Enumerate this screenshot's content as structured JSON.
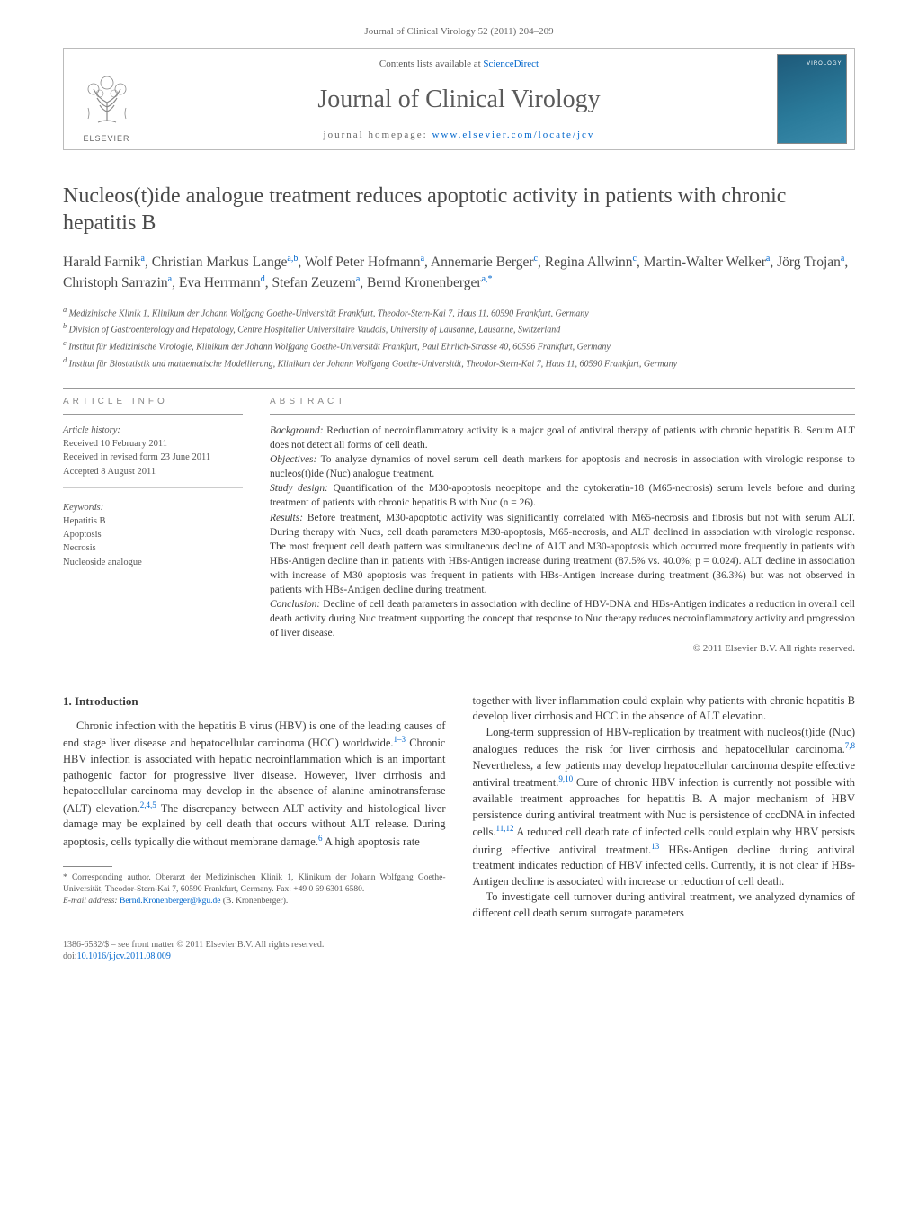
{
  "header": {
    "citation": "Journal of Clinical Virology 52 (2011) 204–209",
    "contents_line_prefix": "Contents lists available at ",
    "contents_link": "ScienceDirect",
    "journal_name": "Journal of Clinical Virology",
    "homepage_prefix": "journal homepage: ",
    "homepage_url": "www.elsevier.com/locate/jcv",
    "publisher_word": "ELSEVIER"
  },
  "article": {
    "title": "Nucleos(t)ide analogue treatment reduces apoptotic activity in patients with chronic hepatitis B",
    "authors_html": "Harald Farnik<sup>a</sup>, Christian Markus Lange<sup>a,b</sup>, Wolf Peter Hofmann<sup>a</sup>, Annemarie Berger<sup>c</sup>, Regina Allwinn<sup>c</sup>, Martin-Walter Welker<sup>a</sup>, Jörg Trojan<sup>a</sup>, Christoph Sarrazin<sup>a</sup>, Eva Herrmann<sup>d</sup>, Stefan Zeuzem<sup>a</sup>, Bernd Kronenberger<sup>a,*</sup>",
    "affiliations": [
      "a Medizinische Klinik 1, Klinikum der Johann Wolfgang Goethe-Universität Frankfurt, Theodor-Stern-Kai 7, Haus 11, 60590 Frankfurt, Germany",
      "b Division of Gastroenterology and Hepatology, Centre Hospitalier Universitaire Vaudois, University of Lausanne, Lausanne, Switzerland",
      "c Institut für Medizinische Virologie, Klinikum der Johann Wolfgang Goethe-Universität Frankfurt, Paul Ehrlich-Strasse 40, 60596 Frankfurt, Germany",
      "d Institut für Biostatistik und mathematische Modellierung, Klinikum der Johann Wolfgang Goethe-Universität, Theodor-Stern-Kai 7, Haus 11, 60590 Frankfurt, Germany"
    ]
  },
  "info": {
    "label": "article info",
    "history_head": "Article history:",
    "history": [
      "Received 10 February 2011",
      "Received in revised form 23 June 2011",
      "Accepted 8 August 2011"
    ],
    "keywords_head": "Keywords:",
    "keywords": [
      "Hepatitis B",
      "Apoptosis",
      "Necrosis",
      "Nucleoside analogue"
    ]
  },
  "abstract": {
    "label": "abstract",
    "background": "Background: Reduction of necroinflammatory activity is a major goal of antiviral therapy of patients with chronic hepatitis B. Serum ALT does not detect all forms of cell death.",
    "objectives": "Objectives: To analyze dynamics of novel serum cell death markers for apoptosis and necrosis in association with virologic response to nucleos(t)ide (Nuc) analogue treatment.",
    "study_design": "Study design: Quantification of the M30-apoptosis neoepitope and the cytokeratin-18 (M65-necrosis) serum levels before and during treatment of patients with chronic hepatitis B with Nuc (n = 26).",
    "results": "Results: Before treatment, M30-apoptotic activity was significantly correlated with M65-necrosis and fibrosis but not with serum ALT. During therapy with Nucs, cell death parameters M30-apoptosis, M65-necrosis, and ALT declined in association with virologic response. The most frequent cell death pattern was simultaneous decline of ALT and M30-apoptosis which occurred more frequently in patients with HBs-Antigen decline than in patients with HBs-Antigen increase during treatment (87.5% vs. 40.0%; p = 0.024). ALT decline in association with increase of M30 apoptosis was frequent in patients with HBs-Antigen increase during treatment (36.3%) but was not observed in patients with HBs-Antigen decline during treatment.",
    "conclusion": "Conclusion: Decline of cell death parameters in association with decline of HBV-DNA and HBs-Antigen indicates a reduction in overall cell death activity during Nuc treatment supporting the concept that response to Nuc therapy reduces necroinflammatory activity and progression of liver disease.",
    "copyright": "© 2011 Elsevier B.V. All rights reserved."
  },
  "body": {
    "section_number": "1.",
    "section_title": "Introduction",
    "p1": "Chronic infection with the hepatitis B virus (HBV) is one of the leading causes of end stage liver disease and hepatocellular carcinoma (HCC) worldwide.1–3 Chronic HBV infection is associated with hepatic necroinflammation which is an important pathogenic factor for progressive liver disease. However, liver cirrhosis and hepatocellular carcinoma may develop in the absence of alanine aminotransferase (ALT) elevation.2,4,5 The discrepancy between ALT activity and histological liver damage may be explained by cell death that occurs without ALT release. During apoptosis, cells typically die without membrane damage.6 A high apoptosis rate",
    "p2": "together with liver inflammation could explain why patients with chronic hepatitis B develop liver cirrhosis and HCC in the absence of ALT elevation.",
    "p3": "Long-term suppression of HBV-replication by treatment with nucleos(t)ide (Nuc) analogues reduces the risk for liver cirrhosis and hepatocellular carcinoma.7,8 Nevertheless, a few patients may develop hepatocellular carcinoma despite effective antiviral treatment.9,10 Cure of chronic HBV infection is currently not possible with available treatment approaches for hepatitis B. A major mechanism of HBV persistence during antiviral treatment with Nuc is persistence of cccDNA in infected cells.11,12 A reduced cell death rate of infected cells could explain why HBV persists during effective antiviral treatment.13 HBs-Antigen decline during antiviral treatment indicates reduction of HBV infected cells. Currently, it is not clear if HBs-Antigen decline is associated with increase or reduction of cell death.",
    "p4": "To investigate cell turnover during antiviral treatment, we analyzed dynamics of different cell death serum surrogate parameters"
  },
  "footnotes": {
    "corr": "* Corresponding author. Oberarzt der Medizinischen Klinik 1, Klinikum der Johann Wolfgang Goethe-Universität, Theodor-Stern-Kai 7, 60590 Frankfurt, Germany. Fax: +49 0 69 6301 6580.",
    "email_label": "E-mail address: ",
    "email": "Bernd.Kronenberger@kgu.de",
    "email_suffix": " (B. Kronenberger)."
  },
  "footer": {
    "issn_line": "1386-6532/$ – see front matter © 2011 Elsevier B.V. All rights reserved.",
    "doi_prefix": "doi:",
    "doi": "10.1016/j.jcv.2011.08.009"
  },
  "colors": {
    "link": "#0066cc",
    "text": "#3a3a3a",
    "muted": "#666",
    "rule": "#999"
  }
}
